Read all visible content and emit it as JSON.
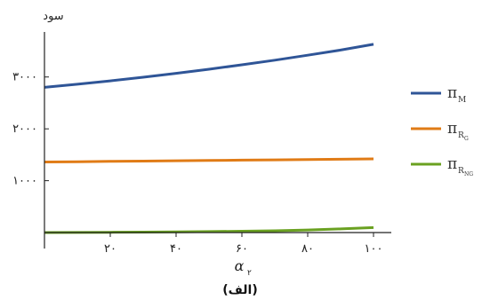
{
  "chart_data": {
    "type": "line",
    "ylabel": "سود",
    "xlabel_symbol": "α",
    "xlabel_subscript": "۲",
    "caption": "(الف)",
    "x": [
      0,
      10,
      20,
      30,
      40,
      50,
      60,
      70,
      80,
      90,
      100
    ],
    "xlim": [
      0,
      100
    ],
    "ylim": [
      0,
      3800
    ],
    "xticks": [
      20,
      40,
      60,
      80,
      100
    ],
    "xtick_labels": [
      "۲۰",
      "۴۰",
      "۶۰",
      "۸۰",
      "۱۰۰"
    ],
    "yticks": [
      1000,
      2000,
      3000
    ],
    "ytick_labels": [
      "۱۰۰۰",
      "۲۰۰۰",
      "۳۰۰۰"
    ],
    "grid": false,
    "legend_position": "right",
    "series": [
      {
        "name": "π_M",
        "legend_symbol": "π",
        "legend_subscript": "M",
        "legend_subscript2": "",
        "color": "#2f5597",
        "values": [
          2800,
          2860,
          2925,
          2995,
          3070,
          3150,
          3235,
          3325,
          3420,
          3520,
          3630
        ]
      },
      {
        "name": "π_RG",
        "legend_symbol": "π",
        "legend_subscript": "R",
        "legend_subscript2": "G",
        "color": "#e07b16",
        "values": [
          1360,
          1366,
          1372,
          1378,
          1384,
          1390,
          1396,
          1402,
          1408,
          1414,
          1420
        ]
      },
      {
        "name": "π_RNG",
        "legend_symbol": "π",
        "legend_subscript": "R",
        "legend_subscript2": "NG",
        "color": "#6aa121",
        "values": [
          0,
          2,
          5,
          9,
          13,
          18,
          25,
          35,
          50,
          70,
          95
        ]
      }
    ]
  }
}
